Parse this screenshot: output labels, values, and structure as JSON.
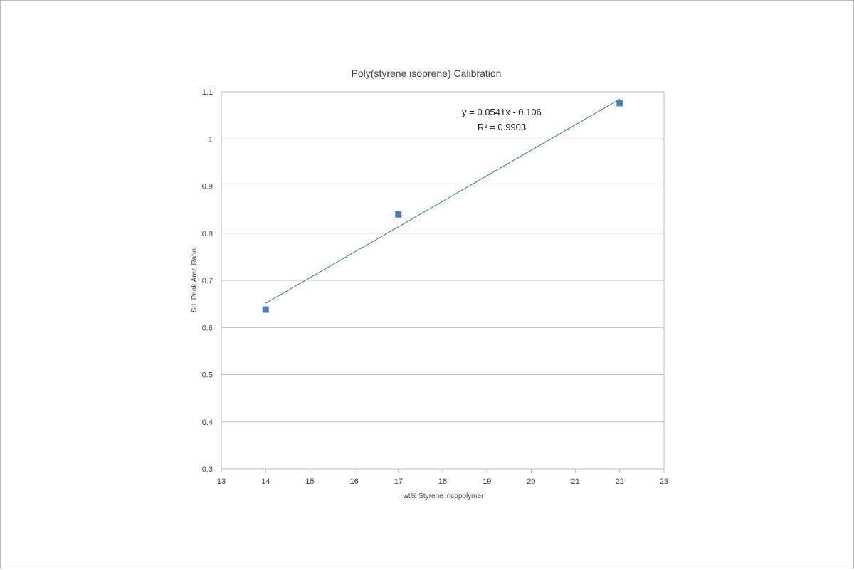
{
  "chart_data": {
    "type": "scatter",
    "title": "Poly(styrene isoprene)  Calibration",
    "xlabel": "wt% Styrene incopolymer",
    "ylabel": "S:L Peak Area Ratio",
    "xlim": [
      13,
      23
    ],
    "ylim": [
      0.3,
      1.1
    ],
    "x_ticks": [
      "13",
      "14",
      "15",
      "16",
      "17",
      "18",
      "19",
      "20",
      "21",
      "22",
      "23"
    ],
    "y_ticks": [
      "0.3",
      "0.4",
      "0.5",
      "0.6",
      "0.7",
      "0.8",
      "0.9",
      "1",
      "1.1"
    ],
    "grid": "horizontal",
    "legend": "none",
    "series": [
      {
        "x": [
          14,
          17,
          22
        ],
        "y": [
          0.638,
          0.84,
          1.076
        ],
        "marker": "square",
        "color": "#4a7ebb"
      }
    ],
    "trendline": {
      "slope": 0.0541,
      "intercept": -0.106,
      "x_range": [
        14,
        22
      ],
      "color": "#3b6ea5",
      "equation": "y = 0.0541x - 0.106",
      "r2_label": "R² = 0.9903"
    }
  }
}
